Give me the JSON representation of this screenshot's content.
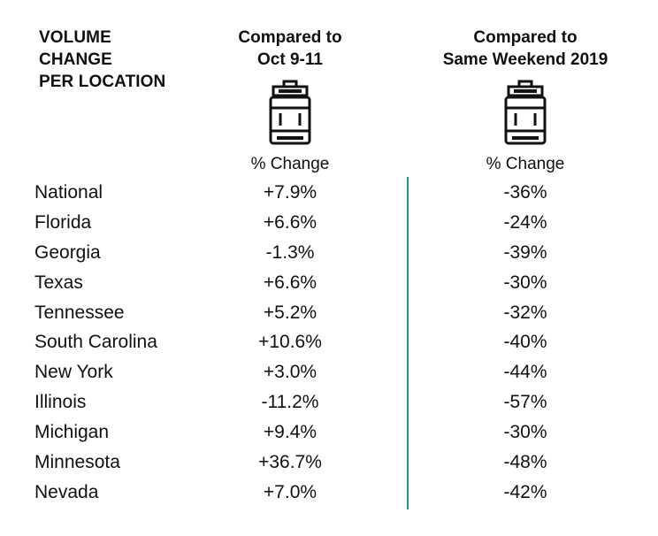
{
  "header": {
    "row_label_lines": [
      "VOLUME",
      "CHANGE",
      "PER LOCATION"
    ],
    "col1_lines": [
      "Compared to",
      "Oct 9-11"
    ],
    "col2_lines": [
      "Compared to",
      "Same Weekend 2019"
    ]
  },
  "icons": {
    "col1": "beer-keg-icon",
    "col2": "beer-keg-icon"
  },
  "subheaders": {
    "col1": "% Change",
    "col2": "% Change"
  },
  "colors": {
    "divider": "#2a8c96",
    "text": "#111111"
  },
  "chart_data": {
    "type": "table",
    "columns": [
      "VOLUME CHANGE PER LOCATION",
      "Compared to Oct 9-11",
      "Compared to Same Weekend 2019"
    ],
    "rows": [
      {
        "location": "National",
        "vs_oct": "+7.9%",
        "vs_2019": "-36%"
      },
      {
        "location": "Florida",
        "vs_oct": "+6.6%",
        "vs_2019": "-24%"
      },
      {
        "location": "Georgia",
        "vs_oct": "-1.3%",
        "vs_2019": "-39%"
      },
      {
        "location": "Texas",
        "vs_oct": "+6.6%",
        "vs_2019": "-30%"
      },
      {
        "location": "Tennessee",
        "vs_oct": "+5.2%",
        "vs_2019": "-32%"
      },
      {
        "location": "South Carolina",
        "vs_oct": "+10.6%",
        "vs_2019": "-40%"
      },
      {
        "location": "New York",
        "vs_oct": "+3.0%",
        "vs_2019": "-44%"
      },
      {
        "location": "Illinois",
        "vs_oct": "-11.2%",
        "vs_2019": "-57%"
      },
      {
        "location": "Michigan",
        "vs_oct": "+9.4%",
        "vs_2019": "-30%"
      },
      {
        "location": "Minnesota",
        "vs_oct": "+36.7%",
        "vs_2019": "-48%"
      },
      {
        "location": "Nevada",
        "vs_oct": "+7.0%",
        "vs_2019": "-42%"
      }
    ]
  }
}
